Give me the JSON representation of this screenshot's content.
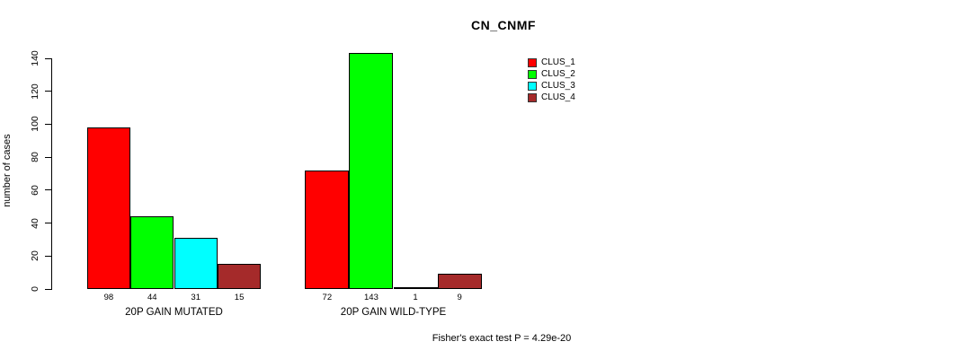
{
  "chart_data": {
    "type": "bar",
    "title": "CN_CNMF",
    "ylabel": "number of cases",
    "xlabel": "",
    "ylim": [
      0,
      140
    ],
    "yticks": [
      0,
      20,
      40,
      60,
      80,
      100,
      120,
      140
    ],
    "grid": false,
    "legend_position": "top-right",
    "legend": [
      {
        "label": "CLUS_1",
        "color": "#FF0000"
      },
      {
        "label": "CLUS_2",
        "color": "#00FF00"
      },
      {
        "label": "CLUS_3",
        "color": "#00FFFF"
      },
      {
        "label": "CLUS_4",
        "color": "#A52A2A"
      }
    ],
    "series_colors": [
      "#FF0000",
      "#00FF00",
      "#00FFFF",
      "#A52A2A"
    ],
    "groups": [
      {
        "label": "20P GAIN MUTATED",
        "values": [
          98,
          44,
          31,
          15
        ]
      },
      {
        "label": "20P GAIN WILD-TYPE",
        "values": [
          72,
          143,
          1,
          9
        ]
      }
    ],
    "annotation": "Fisher's exact test P = 4.29e-20"
  }
}
